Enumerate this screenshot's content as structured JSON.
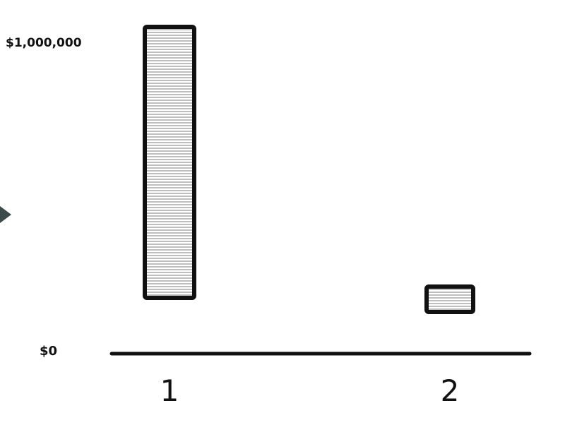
{
  "chart_data": {
    "type": "bar",
    "categories": [
      "1",
      "2"
    ],
    "values": [
      1000000,
      40000
    ],
    "ylim": [
      0,
      1000000
    ],
    "y_tick_labels": [
      "$0",
      "$1,000,000"
    ],
    "title": "",
    "xlabel": "",
    "ylabel": "",
    "grid": false,
    "bar_fill": "hatched-gray",
    "colors": {
      "ink": "#111111",
      "hatch": "#9a9a9a",
      "marker": "#3d4a4a"
    }
  }
}
